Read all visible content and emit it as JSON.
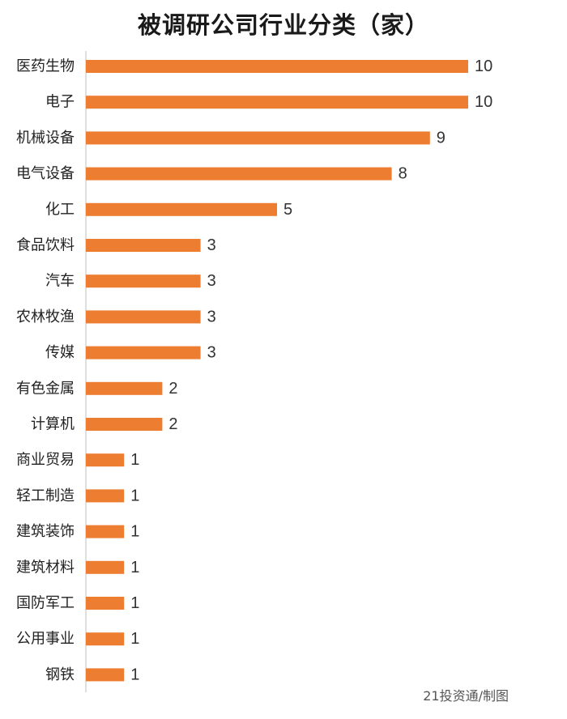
{
  "chart_data": {
    "type": "bar",
    "orientation": "horizontal",
    "title": "被调研公司行业分类（家）",
    "categories": [
      "医药生物",
      "电子",
      "机械设备",
      "电气设备",
      "化工",
      "食品饮料",
      "汽车",
      "农林牧渔",
      "传媒",
      "有色金属",
      "计算机",
      "商业贸易",
      "轻工制造",
      "建筑装饰",
      "建筑材料",
      "国防军工",
      "公用事业",
      "钢铁"
    ],
    "values": [
      10,
      10,
      9,
      8,
      5,
      3,
      3,
      3,
      3,
      2,
      2,
      1,
      1,
      1,
      1,
      1,
      1,
      1
    ],
    "xlim": [
      0,
      10
    ],
    "grid": false,
    "legend": "none",
    "bar_color": "#ED7D31"
  },
  "source": "21投资通/制图"
}
